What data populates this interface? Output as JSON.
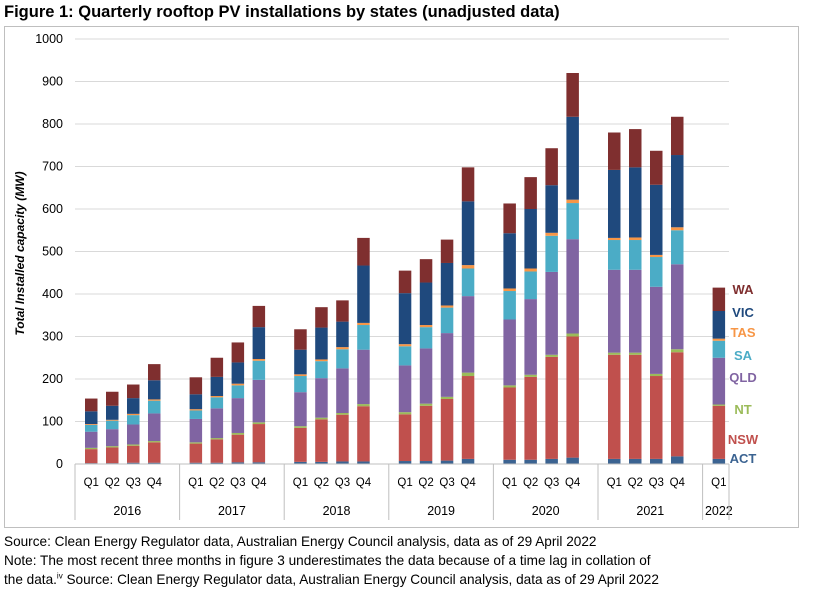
{
  "figure_title": "Figure 1: Quarterly rooftop PV installations by states (unadjusted data)",
  "notes": {
    "source1": "Source: Clean Energy Regulator data, Australian Energy Council analysis, data as of 29 April 2022",
    "note_line1": "Note: The most recent three months in figure 3 underestimates the data because of a time lag in collation of",
    "note_line2a": "the data.",
    "note_sup": "iv",
    "note_line2b": " Source: Clean Energy Regulator data, Australian Energy Council analysis, data as of 29 April 2022"
  },
  "chart_data": {
    "type": "bar",
    "stacked": true,
    "title": "",
    "ylabel": "Total Installed capacity (MW)",
    "xlabel": "",
    "ylim": [
      0,
      1000
    ],
    "yticks": [
      0,
      100,
      200,
      300,
      400,
      500,
      600,
      700,
      800,
      900,
      1000
    ],
    "grid": true,
    "legend_position": "right, inline labels",
    "years": [
      "2016",
      "2017",
      "2018",
      "2019",
      "2020",
      "2021",
      "2022"
    ],
    "quarter_labels": [
      "Q1",
      "Q2",
      "Q3",
      "Q4"
    ],
    "categories": [
      "2016 Q1",
      "2016 Q2",
      "2016 Q3",
      "2016 Q4",
      "2017 Q1",
      "2017 Q2",
      "2017 Q3",
      "2017 Q4",
      "2018 Q1",
      "2018 Q2",
      "2018 Q3",
      "2018 Q4",
      "2019 Q1",
      "2019 Q2",
      "2019 Q3",
      "2019 Q4",
      "2020 Q1",
      "2020 Q2",
      "2020 Q3",
      "2020 Q4",
      "2021 Q1",
      "2021 Q2",
      "2021 Q3",
      "2021 Q4",
      "2022 Q1"
    ],
    "series": [
      {
        "name": "ACT",
        "color": "#3b6391",
        "values": [
          2,
          2,
          3,
          3,
          3,
          3,
          4,
          4,
          5,
          5,
          6,
          6,
          7,
          7,
          8,
          12,
          10,
          10,
          12,
          15,
          12,
          12,
          12,
          18,
          12
        ]
      },
      {
        "name": "NSW",
        "color": "#c0504d",
        "values": [
          33,
          37,
          40,
          48,
          45,
          55,
          65,
          90,
          80,
          100,
          110,
          130,
          110,
          130,
          145,
          195,
          170,
          195,
          240,
          285,
          245,
          245,
          195,
          245,
          125
        ]
      },
      {
        "name": "NT",
        "color": "#9bbb59",
        "values": [
          3,
          3,
          3,
          3,
          3,
          3,
          4,
          4,
          4,
          4,
          4,
          5,
          5,
          5,
          5,
          8,
          5,
          5,
          5,
          7,
          5,
          5,
          5,
          7,
          3
        ]
      },
      {
        "name": "QLD",
        "color": "#8064a2",
        "values": [
          38,
          40,
          47,
          65,
          55,
          70,
          82,
          100,
          80,
          93,
          105,
          128,
          110,
          130,
          150,
          180,
          155,
          178,
          195,
          222,
          195,
          195,
          205,
          200,
          110
        ]
      },
      {
        "name": "SA",
        "color": "#4bacc6",
        "values": [
          16,
          20,
          22,
          30,
          20,
          26,
          30,
          45,
          38,
          40,
          45,
          58,
          45,
          50,
          60,
          65,
          67,
          65,
          85,
          85,
          70,
          70,
          70,
          80,
          40
        ]
      },
      {
        "name": "TAS",
        "color": "#f79646",
        "values": [
          2,
          2,
          3,
          3,
          3,
          3,
          4,
          4,
          4,
          4,
          5,
          5,
          5,
          5,
          5,
          8,
          6,
          7,
          7,
          8,
          5,
          6,
          5,
          7,
          5
        ]
      },
      {
        "name": "VIC",
        "color": "#1f497d",
        "values": [
          30,
          33,
          37,
          45,
          35,
          45,
          50,
          75,
          58,
          75,
          60,
          135,
          120,
          100,
          100,
          150,
          130,
          140,
          112,
          195,
          160,
          165,
          165,
          170,
          65
        ]
      },
      {
        "name": "WA",
        "color": "#7f2f2f",
        "values": [
          30,
          33,
          32,
          38,
          40,
          45,
          47,
          50,
          48,
          48,
          50,
          65,
          53,
          55,
          55,
          80,
          70,
          75,
          87,
          103,
          88,
          90,
          80,
          90,
          55
        ]
      }
    ]
  }
}
